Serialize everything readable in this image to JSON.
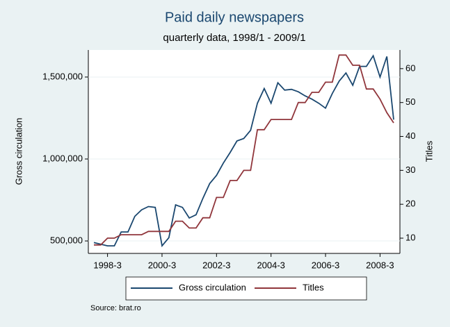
{
  "chart_data": {
    "type": "line",
    "title": "Paid daily newspapers",
    "subtitle": "quarterly data, 1998/1 - 2009/1",
    "y_label": "Gross circulation",
    "y2_label": "Titles",
    "source": "Source: brat.ro",
    "categories": [
      null,
      null,
      "1998-3",
      null,
      null,
      null,
      null,
      null,
      null,
      null,
      "2000-3",
      null,
      null,
      null,
      null,
      null,
      null,
      null,
      "2002-3",
      null,
      null,
      null,
      null,
      null,
      null,
      null,
      "2004-3",
      null,
      null,
      null,
      null,
      null,
      null,
      null,
      "2006-3",
      null,
      null,
      null,
      null,
      null,
      null,
      null,
      "2008-3",
      null,
      null
    ],
    "series": [
      {
        "name": "Gross circulation",
        "color": "#1a476f",
        "axis": "y",
        "values": [
          490000,
          480000,
          470000,
          470000,
          555000,
          555000,
          650000,
          690000,
          710000,
          705000,
          470000,
          520000,
          720000,
          705000,
          640000,
          660000,
          760000,
          850000,
          900000,
          975000,
          1040000,
          1110000,
          1125000,
          1175000,
          1340000,
          1430000,
          1340000,
          1465000,
          1420000,
          1425000,
          1410000,
          1385000,
          1365000,
          1340000,
          1310000,
          1400000,
          1475000,
          1525000,
          1450000,
          1565000,
          1565000,
          1630000,
          1500000,
          1625000,
          1240000
        ]
      },
      {
        "name": "Titles",
        "color": "#90353b",
        "axis": "y2",
        "values": [
          8,
          8,
          10,
          10,
          11,
          11,
          11,
          11,
          12,
          12,
          12,
          12,
          15,
          15,
          13,
          13,
          16,
          16,
          22,
          22,
          27,
          27,
          30,
          30,
          42,
          42,
          45,
          45,
          45,
          45,
          50,
          50,
          53,
          53,
          56,
          56,
          64,
          64,
          61,
          61,
          54,
          54,
          51,
          47,
          44
        ]
      }
    ],
    "ylim": [
      424000,
      1665000
    ],
    "yticks": [
      {
        "value": 500000,
        "label": "500,000"
      },
      {
        "value": 1000000,
        "label": "1,000,000"
      },
      {
        "value": 1500000,
        "label": "1,500,000"
      }
    ],
    "y2lim": [
      5.5,
      65.5
    ],
    "y2ticks": [
      10,
      20,
      30,
      40,
      50,
      60
    ],
    "grid": true,
    "legend": "bottom"
  }
}
